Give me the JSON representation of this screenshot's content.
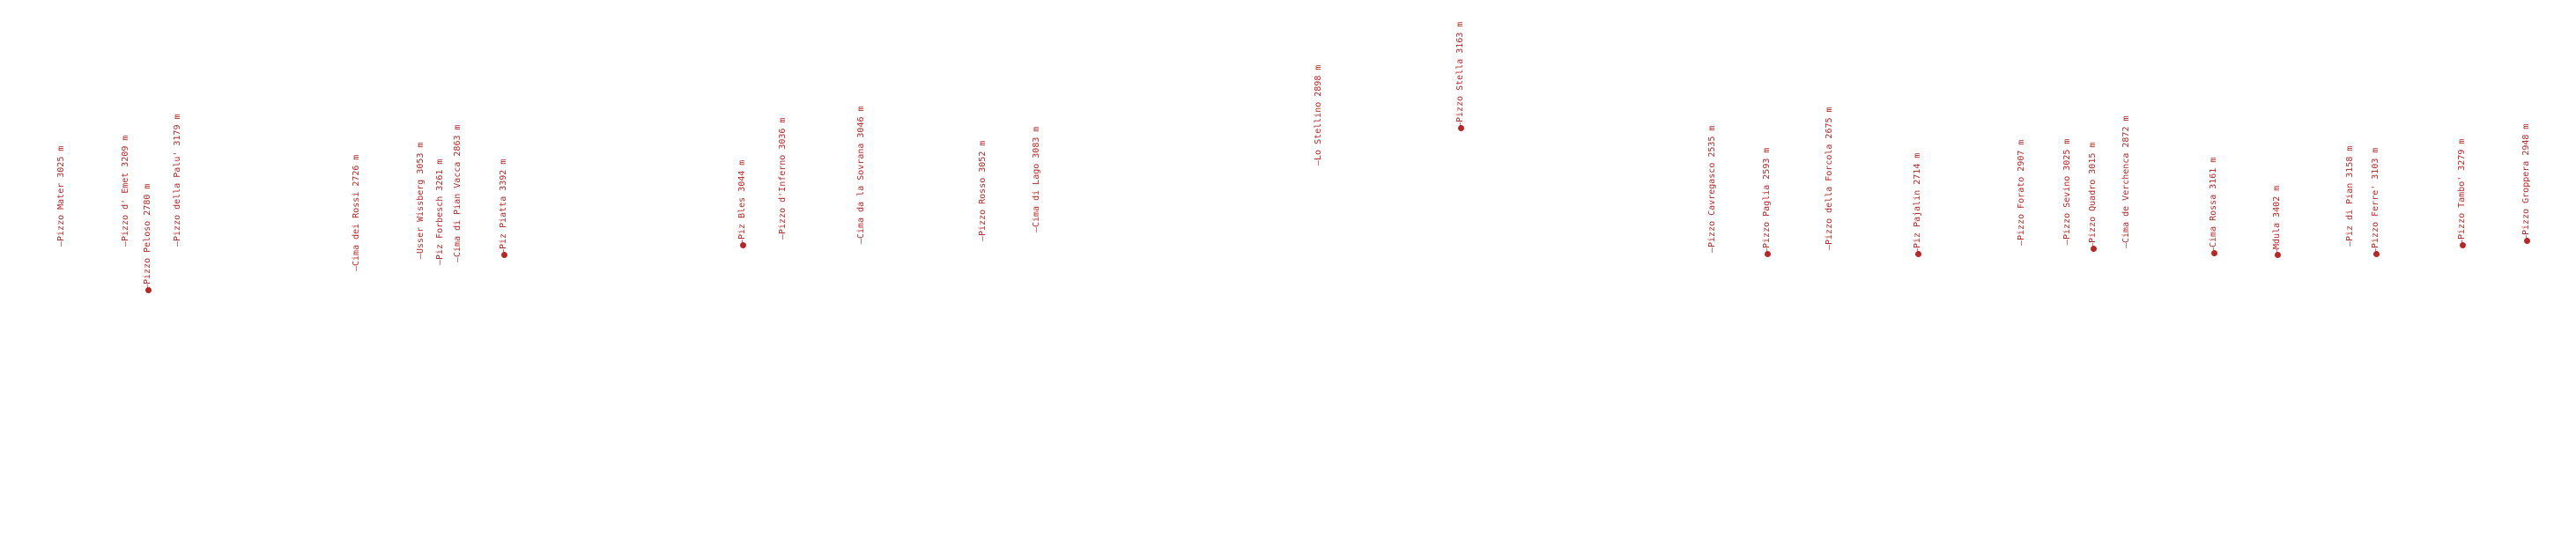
{
  "colors": {
    "background": "#ffffff",
    "label": "#b42828",
    "marker": "#b42828"
  },
  "peaks": [
    {
      "label": "Pizzo Mater 3025 m",
      "marker": false
    },
    {
      "label": "Pizzo d' Emet 3209 m",
      "marker": false
    },
    {
      "label": "Pizzo Peloso 2780 m",
      "marker": true
    },
    {
      "label": "Pizzo della Palu' 3179 m",
      "marker": false
    },
    {
      "label": "Cima dei Rossi 2726 m",
      "marker": false
    },
    {
      "label": "Usser Wissberg 3053 m",
      "marker": false
    },
    {
      "label": "Piz Forbesch 3261 m",
      "marker": false
    },
    {
      "label": "Cima di Pian Vacca 2863 m",
      "marker": false
    },
    {
      "label": "Piz Piatta 3392 m",
      "marker": true
    },
    {
      "label": "Piz Bles 3044 m",
      "marker": true
    },
    {
      "label": "Pizzo d'Inferno 3036 m",
      "marker": false
    },
    {
      "label": "Cima da la Sovrana 3046 m",
      "marker": false
    },
    {
      "label": "Pizzo Rosso 3052 m",
      "marker": false
    },
    {
      "label": "Cima di Lago 3083 m",
      "marker": false
    },
    {
      "label": "Lo Stellino 2898 m",
      "marker": false
    },
    {
      "label": "Pizzo Stella 3163 m",
      "marker": true
    },
    {
      "label": "Pizzo Cavregasco 2535 m",
      "marker": false
    },
    {
      "label": "Pizzo Paglia 2593 m",
      "marker": true
    },
    {
      "label": "Pizzo della Forcola 2675 m",
      "marker": false
    },
    {
      "label": "Piz Pajalin 2714 m",
      "marker": true
    },
    {
      "label": "Pizzo Forato 2907 m",
      "marker": false
    },
    {
      "label": "Pizzo Sevino 3025 m",
      "marker": false
    },
    {
      "label": "Pizzo Quadro 3015 m",
      "marker": true
    },
    {
      "label": "Cima de Verchenca 2872 m",
      "marker": false
    },
    {
      "label": "Cima Rossa 3161 m",
      "marker": true
    },
    {
      "label": "Mdula 3402 m",
      "marker": true
    },
    {
      "label": "Piz di Pian 3158 m",
      "marker": false
    },
    {
      "label": "Pizzo Ferre' 3103 m",
      "marker": true
    },
    {
      "label": "Pizzo Tambo' 3279 m",
      "marker": true
    },
    {
      "label": "Pizzo Groppera 2948 m",
      "marker": true
    }
  ]
}
